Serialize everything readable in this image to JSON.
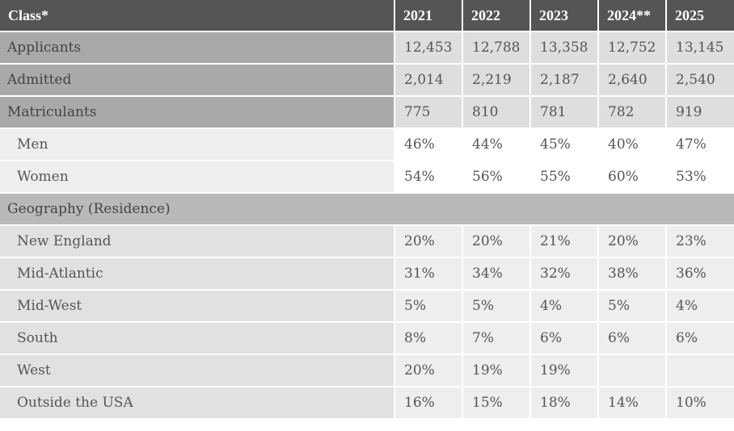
{
  "header": {
    "class_label": "Class*",
    "years": [
      "2021",
      "2022",
      "2023",
      "2024**",
      "2025"
    ]
  },
  "rows": [
    {
      "label": "Applicants",
      "values": [
        "12,453",
        "12,788",
        "13,358",
        "12,752",
        "13,145"
      ]
    },
    {
      "label": "Admitted",
      "values": [
        "2,014",
        "2,219",
        "2,187",
        "2,640",
        "2,540"
      ]
    },
    {
      "label": "Matriculants",
      "values": [
        "775",
        "810",
        "781",
        "782",
        "919"
      ]
    },
    {
      "label": "Men",
      "values": [
        "46%",
        "44%",
        "45%",
        "40%",
        "47%"
      ]
    },
    {
      "label": "Women",
      "values": [
        "54%",
        "56%",
        "55%",
        "60%",
        "53%"
      ]
    },
    {
      "label": "Geography (Residence)",
      "values": []
    },
    {
      "label": "New England",
      "values": [
        "20%",
        "20%",
        "21%",
        "20%",
        "23%"
      ]
    },
    {
      "label": "Mid-Atlantic",
      "values": [
        "31%",
        "34%",
        "32%",
        "38%",
        "36%"
      ]
    },
    {
      "label": "Mid-West",
      "values": [
        "5%",
        "5%",
        "4%",
        "5%",
        "4%"
      ]
    },
    {
      "label": "South",
      "values": [
        "8%",
        "7%",
        "6%",
        "6%",
        "6%"
      ]
    },
    {
      "label": "West",
      "values": [
        "20%",
        "19%",
        "19%",
        "",
        ""
      ]
    },
    {
      "label": "Outside the USA",
      "values": [
        "16%",
        "15%",
        "18%",
        "14%",
        "10%"
      ]
    }
  ]
}
